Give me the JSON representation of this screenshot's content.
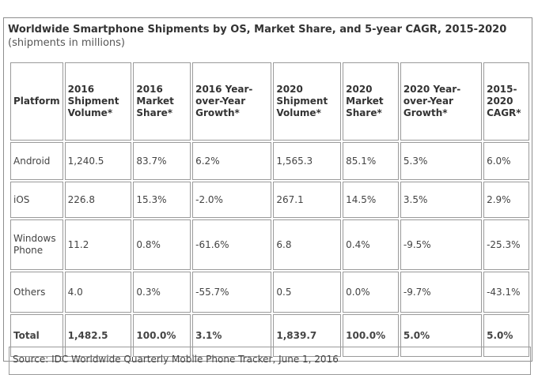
{
  "title": {
    "bold": "Worldwide Smartphone Shipments by OS, Market Share, and 5-year CAGR, 2015-2020",
    "subtitle": "(shipments in millions)"
  },
  "table": {
    "headers": [
      "Platform",
      "2016 Shipment Volume*",
      "2016 Market Share*",
      "2016 Year-over-Year Growth*",
      "2020 Shipment Volume*",
      "2020 Market Share*",
      "2020 Year-over-Year Growth*",
      "2015-2020 CAGR*"
    ],
    "rows": [
      [
        "Android",
        "1,240.5",
        "83.7%",
        "6.2%",
        "1,565.3",
        "85.1%",
        "5.3%",
        "6.0%"
      ],
      [
        "iOS",
        "226.8",
        "15.3%",
        "-2.0%",
        "267.1",
        "14.5%",
        "3.5%",
        "2.9%"
      ],
      [
        "Windows Phone",
        "11.2",
        "0.8%",
        "-61.6%",
        "6.8",
        "0.4%",
        "-9.5%",
        "-25.3%"
      ],
      [
        "Others",
        "4.0",
        "0.3%",
        "-55.7%",
        "0.5",
        "0.0%",
        "-9.7%",
        "-43.1%"
      ],
      [
        "Total",
        "1,482.5",
        "100.0%",
        "3.1%",
        "1,839.7",
        "100.0%",
        "5.0%",
        "5.0%"
      ]
    ]
  },
  "source": "Source: IDC Worldwide Quarterly Mobile Phone Tracker, June 1, 2016"
}
